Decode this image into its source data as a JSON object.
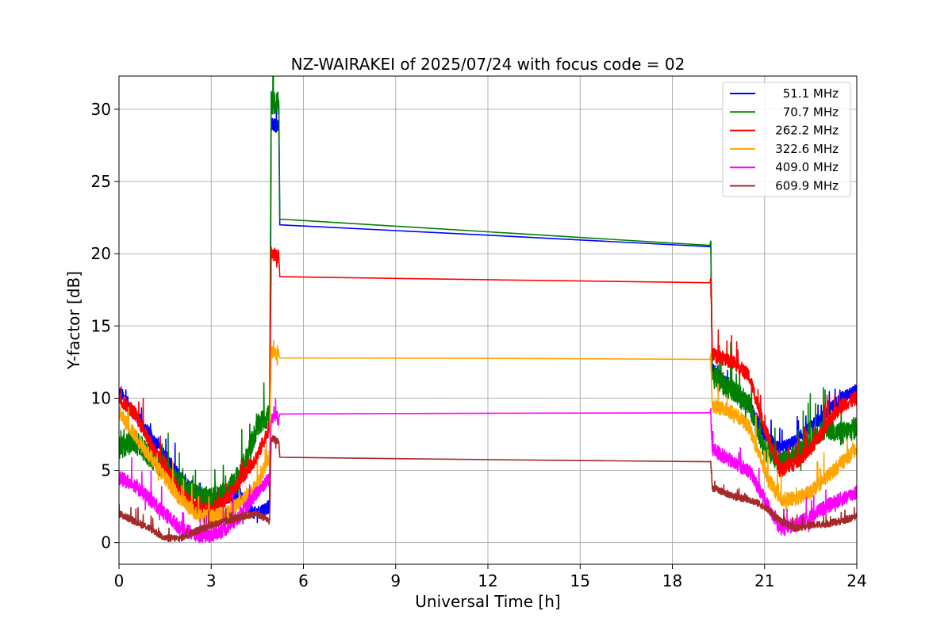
{
  "chart_data": {
    "type": "line",
    "title": "NZ-WAIRAKEI of 2025/07/24 with focus code = 02",
    "xlabel": "Universal Time [h]",
    "ylabel": "Y-factor [dB]",
    "xlim": [
      0,
      24
    ],
    "ylim": [
      -1.5,
      32.3
    ],
    "xticks": [
      0,
      3,
      6,
      9,
      12,
      15,
      18,
      21,
      24
    ],
    "yticks": [
      0,
      5,
      10,
      15,
      20,
      25,
      30
    ],
    "grid": true,
    "legend_position": "top-right",
    "series": [
      {
        "name": "51.1 MHz",
        "color": "#0000ff",
        "x": [
          0,
          0.5,
          1.0,
          1.5,
          2.0,
          2.5,
          3.0,
          3.5,
          4.0,
          4.4,
          4.9,
          4.95,
          5.2,
          5.23,
          19.2,
          19.25,
          19.3,
          20.0,
          20.5,
          21.0,
          21.5,
          22.0,
          22.5,
          23.0,
          23.5,
          24.0
        ],
        "y": [
          10.5,
          9.0,
          7.5,
          6.0,
          4.5,
          3.5,
          3.0,
          3.2,
          3.0,
          2.0,
          2.5,
          29.0,
          28.8,
          22.0,
          20.5,
          20.5,
          12.0,
          10.5,
          9.5,
          7.5,
          6.5,
          7.0,
          8.0,
          9.0,
          10.0,
          10.5
        ],
        "noise": 0.45
      },
      {
        "name": "70.7 MHz",
        "color": "#008000",
        "x": [
          0,
          0.5,
          1.0,
          1.5,
          2.0,
          2.5,
          3.0,
          3.5,
          4.0,
          4.5,
          4.9,
          4.95,
          5.2,
          5.23,
          19.2,
          19.25,
          19.3,
          20.0,
          20.5,
          21.0,
          21.5,
          22.0,
          22.5,
          23.0,
          23.5,
          24.0
        ],
        "y": [
          6.5,
          7.0,
          6.0,
          5.0,
          4.0,
          3.2,
          3.0,
          3.5,
          5.0,
          8.0,
          9.0,
          30.5,
          30.3,
          22.4,
          20.6,
          20.6,
          11.5,
          10.5,
          9.5,
          6.5,
          5.5,
          6.0,
          7.0,
          8.0,
          7.5,
          8.0
        ],
        "noise": 0.8
      },
      {
        "name": "262.2 MHz",
        "color": "#ff0000",
        "x": [
          0,
          0.5,
          1.0,
          1.5,
          2.0,
          2.5,
          3.0,
          3.5,
          4.0,
          4.5,
          4.9,
          4.95,
          5.2,
          5.23,
          19.2,
          19.25,
          19.3,
          20.0,
          20.5,
          21.0,
          21.5,
          22.0,
          22.5,
          23.0,
          23.5,
          24.0
        ],
        "y": [
          10.0,
          9.0,
          7.0,
          5.0,
          3.5,
          2.5,
          2.2,
          3.0,
          4.5,
          6.0,
          8.0,
          20.0,
          19.8,
          18.4,
          18.0,
          18.0,
          13.0,
          12.5,
          11.5,
          8.0,
          5.0,
          5.5,
          6.5,
          8.0,
          9.5,
          10.0
        ],
        "noise": 0.5
      },
      {
        "name": "322.6 MHz",
        "color": "#ffa500",
        "x": [
          0,
          0.5,
          1.0,
          1.5,
          2.0,
          2.5,
          3.0,
          3.5,
          4.0,
          4.5,
          4.9,
          4.95,
          5.2,
          5.23,
          19.2,
          19.25,
          19.3,
          20.0,
          20.5,
          21.0,
          21.5,
          22.0,
          22.5,
          23.0,
          23.5,
          24.0
        ],
        "y": [
          9.0,
          7.5,
          6.0,
          4.5,
          3.0,
          2.0,
          1.8,
          2.0,
          3.0,
          4.0,
          6.0,
          13.2,
          13.0,
          12.8,
          12.7,
          12.7,
          9.5,
          9.0,
          8.0,
          5.0,
          3.0,
          3.0,
          3.5,
          4.5,
          5.5,
          6.5
        ],
        "noise": 0.5
      },
      {
        "name": "409.0 MHz",
        "color": "#ff00ff",
        "x": [
          0,
          0.5,
          1.0,
          1.5,
          2.0,
          2.5,
          3.0,
          3.5,
          4.0,
          4.5,
          4.9,
          4.95,
          5.2,
          5.23,
          19.2,
          19.25,
          19.3,
          20.0,
          20.5,
          21.0,
          21.5,
          22.0,
          22.5,
          23.0,
          23.5,
          24.0
        ],
        "y": [
          4.5,
          4.0,
          3.0,
          2.0,
          1.0,
          0.5,
          0.5,
          1.0,
          2.0,
          3.5,
          4.5,
          8.8,
          8.6,
          8.9,
          9.0,
          9.0,
          6.5,
          5.5,
          5.0,
          3.0,
          1.0,
          1.2,
          1.8,
          2.5,
          3.0,
          3.5
        ],
        "noise": 0.5
      },
      {
        "name": "609.9 MHz",
        "color": "#a52a2a",
        "x": [
          0,
          0.5,
          1.0,
          1.5,
          2.0,
          2.5,
          3.0,
          3.5,
          4.0,
          4.5,
          4.9,
          4.95,
          5.2,
          5.23,
          19.2,
          19.25,
          19.3,
          20.0,
          20.5,
          21.0,
          21.5,
          22.0,
          22.5,
          23.0,
          23.5,
          24.0
        ],
        "y": [
          2.0,
          1.5,
          1.0,
          0.3,
          0.3,
          0.8,
          1.2,
          1.5,
          1.8,
          2.0,
          1.5,
          7.2,
          7.0,
          5.9,
          5.6,
          5.6,
          3.8,
          3.2,
          3.0,
          2.5,
          1.5,
          1.0,
          1.2,
          1.3,
          1.5,
          1.8
        ],
        "noise": 0.25
      }
    ]
  }
}
